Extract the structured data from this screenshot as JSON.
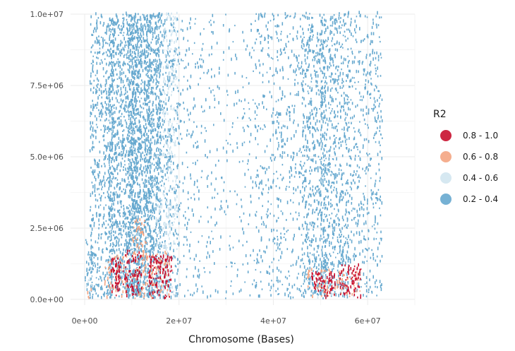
{
  "chart_data": {
    "type": "scatter",
    "title": "",
    "xlabel": "Chromosome (Bases)",
    "ylabel": "",
    "xlim": [
      -3000000,
      70000000
    ],
    "ylim": [
      -200000,
      10000000
    ],
    "x_ticks": [
      0,
      20000000,
      40000000,
      60000000
    ],
    "x_tick_labels": [
      "0e+00",
      "2e+07",
      "4e+07",
      "6e+07"
    ],
    "y_ticks": [
      0,
      2500000,
      5000000,
      7500000,
      10000000
    ],
    "y_tick_labels": [
      "0.0e+00",
      "2.5e+06",
      "5.0e+06",
      "7.5e+06",
      "1.0e+07"
    ],
    "grid": true,
    "legend": {
      "title": "R2",
      "placement": "right",
      "entries": [
        {
          "label": "0.8 - 1.0",
          "color": "#c8102e"
        },
        {
          "label": "0.6 - 0.8",
          "color": "#f4a582"
        },
        {
          "label": "0.4 - 0.6",
          "color": "#d1e5f0"
        },
        {
          "label": "0.2 - 0.4",
          "color": "#67a9cf"
        }
      ]
    },
    "series": [
      {
        "name": "0.2 - 0.4",
        "color": "#67a9cf",
        "bands": [
          {
            "x": [
              0,
              1500000
            ],
            "y": [
              0,
              2200000
            ],
            "density": 0.5
          },
          {
            "x": [
              1000000,
              6000000
            ],
            "y": [
              0,
              10000000
            ],
            "density": 0.45
          },
          {
            "x": [
              5000000,
              12000000
            ],
            "y": [
              0,
              10000000
            ],
            "density": 0.7
          },
          {
            "x": [
              9000000,
              14000000
            ],
            "y": [
              0,
              10000000
            ],
            "density": 0.55
          },
          {
            "x": [
              12500000,
              16000000
            ],
            "y": [
              0,
              10000000
            ],
            "density": 0.75
          },
          {
            "x": [
              15000000,
              20000000
            ],
            "y": [
              0,
              10000000
            ],
            "density": 0.35
          },
          {
            "x": [
              20000000,
              27000000
            ],
            "y": [
              0,
              10000000
            ],
            "density": 0.12
          },
          {
            "x": [
              27000000,
              36000000
            ],
            "y": [
              0,
              10000000
            ],
            "density": 0.08
          },
          {
            "x": [
              36000000,
              46000000
            ],
            "y": [
              0,
              10000000
            ],
            "density": 0.2
          },
          {
            "x": [
              46000000,
              51000000
            ],
            "y": [
              0,
              10000000
            ],
            "density": 0.5
          },
          {
            "x": [
              50000000,
              56000000
            ],
            "y": [
              0,
              10000000
            ],
            "density": 0.45
          },
          {
            "x": [
              56000000,
              63000000
            ],
            "y": [
              0,
              10000000
            ],
            "density": 0.25
          }
        ]
      },
      {
        "name": "0.4 - 0.6",
        "color": "#d1e5f0",
        "bands": [
          {
            "x": [
              16500000,
              19500000
            ],
            "y": [
              0,
              10000000
            ],
            "density": 0.3
          },
          {
            "x": [
              15000000,
              18000000
            ],
            "y": [
              0,
              3500000
            ],
            "density": 0.35
          },
          {
            "x": [
              0,
              1500000
            ],
            "y": [
              0,
              800000
            ],
            "density": 0.3
          },
          {
            "x": [
              47000000,
              58000000
            ],
            "y": [
              0,
              900000
            ],
            "density": 0.15
          }
        ]
      },
      {
        "name": "0.6 - 0.8",
        "color": "#f4a582",
        "bands": [
          {
            "x": [
              4000000,
              9000000
            ],
            "y": [
              0,
              1500000
            ],
            "density": 0.3
          },
          {
            "x": [
              10000000,
              13000000
            ],
            "y": [
              0,
              2800000
            ],
            "density": 0.3
          },
          {
            "x": [
              12000000,
              18000000
            ],
            "y": [
              0,
              1600000
            ],
            "density": 0.35
          },
          {
            "x": [
              47000000,
              58500000
            ],
            "y": [
              0,
              1000000
            ],
            "density": 0.3
          },
          {
            "x": [
              500000,
              2000000
            ],
            "y": [
              0,
              400000
            ],
            "density": 0.3
          }
        ]
      },
      {
        "name": "0.8 - 1.0",
        "color": "#c8102e",
        "bands": [
          {
            "x": [
              5500000,
              7500000
            ],
            "y": [
              0,
              1400000
            ],
            "density": 0.8
          },
          {
            "x": [
              8000000,
              12000000
            ],
            "y": [
              0,
              1700000
            ],
            "density": 0.45
          },
          {
            "x": [
              13500000,
              16000000
            ],
            "y": [
              0,
              1500000
            ],
            "density": 0.7
          },
          {
            "x": [
              16000000,
              18500000
            ],
            "y": [
              0,
              1500000
            ],
            "density": 0.55
          },
          {
            "x": [
              48000000,
              53000000
            ],
            "y": [
              0,
              900000
            ],
            "density": 0.6
          },
          {
            "x": [
              54000000,
              58500000
            ],
            "y": [
              0,
              1200000
            ],
            "density": 0.55
          }
        ]
      }
    ]
  }
}
